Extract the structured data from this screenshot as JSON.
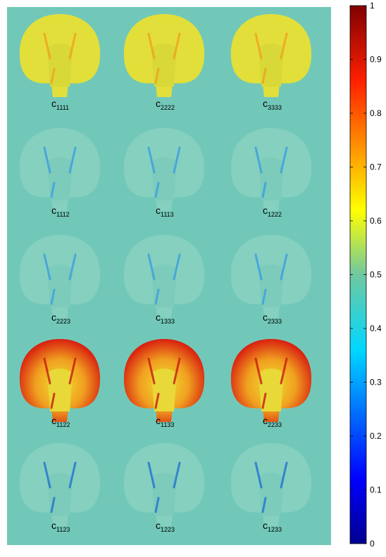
{
  "figure": {
    "panels": [
      {
        "symbol": "c",
        "index": "1111"
      },
      {
        "symbol": "c",
        "index": "2222"
      },
      {
        "symbol": "c",
        "index": "3333"
      },
      {
        "symbol": "c",
        "index": "1112"
      },
      {
        "symbol": "c",
        "index": "1113"
      },
      {
        "symbol": "c",
        "index": "1222"
      },
      {
        "symbol": "c",
        "index": "2223"
      },
      {
        "symbol": "c",
        "index": "1333"
      },
      {
        "symbol": "c",
        "index": "2333"
      },
      {
        "symbol": "c",
        "index": "1122"
      },
      {
        "symbol": "c",
        "index": "1133"
      },
      {
        "symbol": "c",
        "index": "2233"
      },
      {
        "symbol": "c",
        "index": "1123"
      },
      {
        "symbol": "c",
        "index": "1223"
      },
      {
        "symbol": "c",
        "index": "1233"
      }
    ],
    "colorbar": {
      "lim": [
        0,
        1
      ],
      "ticks": [
        0,
        0.1,
        0.2,
        0.3,
        0.4,
        0.5,
        0.6,
        0.7,
        0.8,
        0.9,
        1
      ]
    }
  }
}
